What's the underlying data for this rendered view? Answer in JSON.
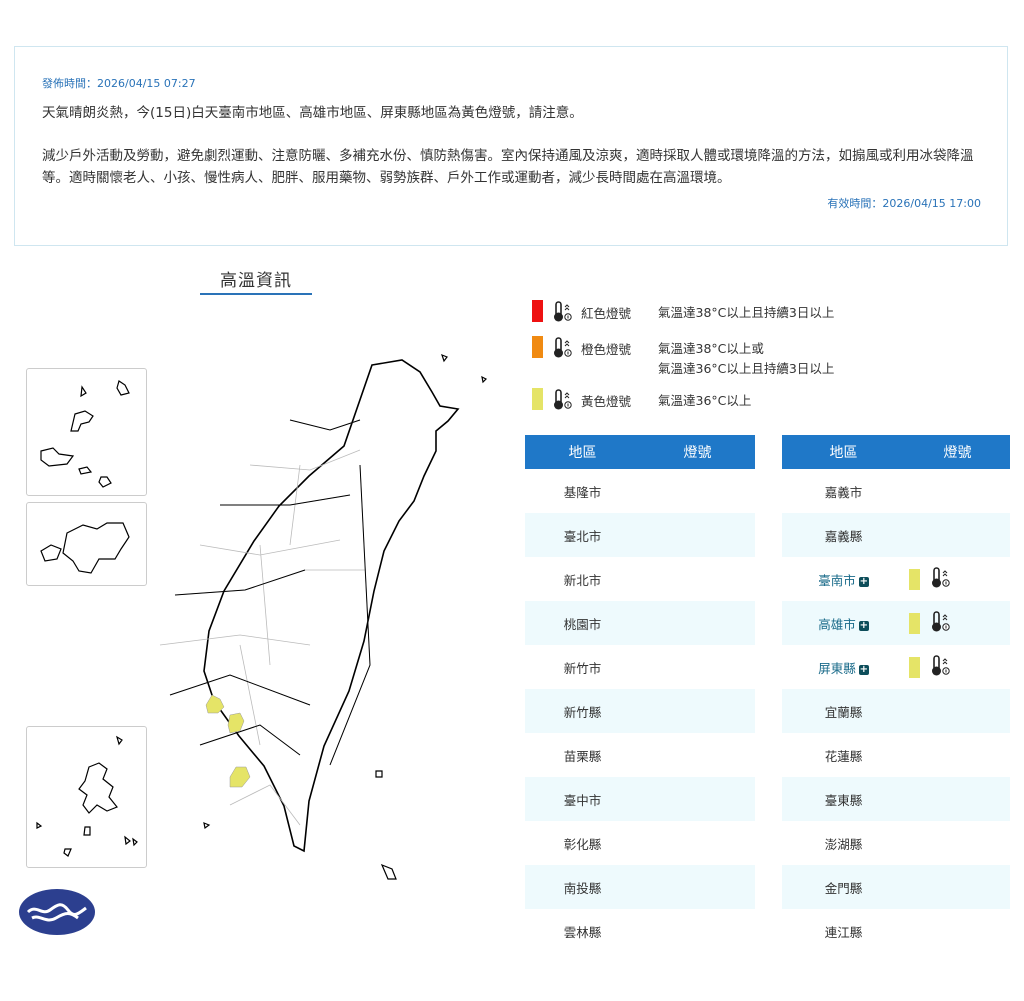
{
  "notice": {
    "published": "發佈時間：2026/04/15 07:27",
    "headline": "天氣晴朗炎熱，今(15日)白天臺南市地區、高雄市地區、屏東縣地區為黃色燈號，請注意。",
    "advice": "減少戶外活動及勞動，避免劇烈運動、注意防曬、多補充水份、慎防熱傷害。室內保持通風及涼爽，適時採取人體或環境降溫的方法，如搧風或利用冰袋降溫等。適時關懷老人、小孩、慢性病人、肥胖、服用藥物、弱勢族群、戶外工作或運動者，減少長時間處在高溫環境。",
    "valid": "有效時間：2026/04/15 17:00"
  },
  "section_title": "高溫資訊",
  "legend": [
    {
      "name": "紅色燈號",
      "desc1": "氣溫達38°C以上且持續3日以上",
      "desc2": "",
      "color": "#ee1111",
      "icon": "thermometer-heat-icon"
    },
    {
      "name": "橙色燈號",
      "desc1": "氣溫達38°C以上或",
      "desc2": "氣溫達36°C以上且持續3日以上",
      "color": "#f08a12",
      "icon": "thermometer-heat-icon"
    },
    {
      "name": "黃色燈號",
      "desc1": "氣溫達36°C以上",
      "desc2": "",
      "color": "#e5e467",
      "icon": "thermometer-heat-icon"
    }
  ],
  "table_headers": {
    "region": "地區",
    "signal": "燈號"
  },
  "left_rows": [
    "基隆市",
    "臺北市",
    "新北市",
    "桃園市",
    "新竹市",
    "新竹縣",
    "苗栗縣",
    "臺中市",
    "彰化縣",
    "南投縣",
    "雲林縣"
  ],
  "right_rows": [
    {
      "name": "嘉義市",
      "signal": ""
    },
    {
      "name": "嘉義縣",
      "signal": ""
    },
    {
      "name": "臺南市",
      "signal": "yellow"
    },
    {
      "name": "高雄市",
      "signal": "yellow"
    },
    {
      "name": "屏東縣",
      "signal": "yellow"
    },
    {
      "name": "宜蘭縣",
      "signal": ""
    },
    {
      "name": "花蓮縣",
      "signal": ""
    },
    {
      "name": "臺東縣",
      "signal": ""
    },
    {
      "name": "澎湖縣",
      "signal": ""
    },
    {
      "name": "金門縣",
      "signal": ""
    },
    {
      "name": "連江縣",
      "signal": ""
    }
  ],
  "plus_label": "+",
  "map_highlight_color": "#e5e467"
}
